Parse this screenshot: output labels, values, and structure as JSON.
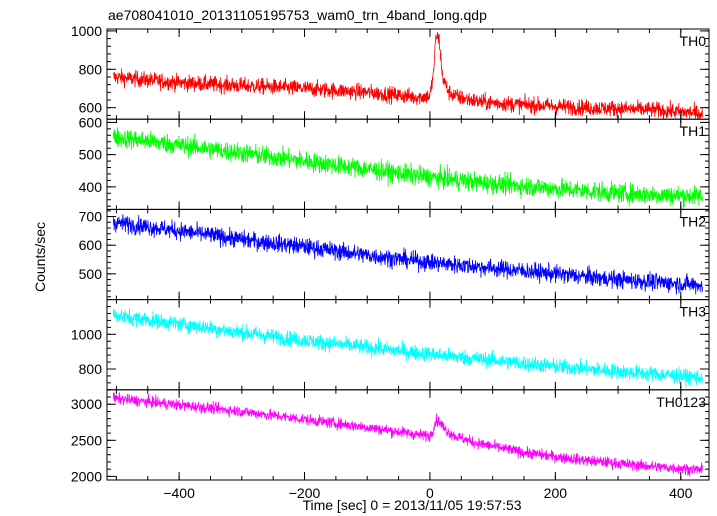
{
  "chart_data": {
    "type": "line",
    "title": "ae708041010_20131105195753_wam0_trn_4band_long.qdp",
    "xlabel": "Time [sec] 0 = 2013/11/05 19:57:53",
    "ylabel": "Counts/sec",
    "xlim": [
      -515,
      445
    ],
    "x_ticks": [
      -400,
      -200,
      0,
      200,
      400
    ],
    "x_tick_labels": [
      "−400",
      "−200",
      "0",
      "200",
      "400"
    ],
    "grid": false,
    "panels": [
      {
        "name": "TH0",
        "color": "#ff0000",
        "ylim": [
          540,
          1010
        ],
        "y_ticks": [
          600,
          800,
          1000
        ],
        "y_tick_labels": [
          "600",
          "800",
          "1000"
        ],
        "x": [
          -505,
          -400,
          -300,
          -200,
          -100,
          -20,
          0,
          5,
          10,
          15,
          20,
          30,
          45,
          80,
          150,
          250,
          350,
          435
        ],
        "values": [
          760,
          730,
          715,
          700,
          680,
          655,
          660,
          760,
          980,
          950,
          760,
          680,
          655,
          630,
          615,
          600,
          590,
          570
        ],
        "noise": 30
      },
      {
        "name": "TH1",
        "color": "#00ff00",
        "ylim": [
          330,
          610
        ],
        "y_ticks": [
          400,
          500,
          600
        ],
        "y_tick_labels": [
          "400",
          "500",
          "600"
        ],
        "x": [
          -505,
          -400,
          -300,
          -200,
          -100,
          0,
          100,
          200,
          300,
          435
        ],
        "values": [
          555,
          530,
          505,
          480,
          455,
          430,
          410,
          395,
          380,
          370
        ],
        "noise": 22
      },
      {
        "name": "TH2",
        "color": "#0000ff",
        "ylim": [
          410,
          725
        ],
        "y_ticks": [
          500,
          600,
          700
        ],
        "y_tick_labels": [
          "500",
          "600",
          "700"
        ],
        "x": [
          -505,
          -400,
          -300,
          -200,
          -100,
          0,
          100,
          200,
          300,
          435
        ],
        "values": [
          680,
          650,
          620,
          595,
          565,
          540,
          520,
          500,
          480,
          460
        ],
        "noise": 22
      },
      {
        "name": "TH3",
        "color": "#00ffff",
        "ylim": [
          680,
          1200
        ],
        "y_ticks": [
          800,
          1000
        ],
        "y_tick_labels": [
          "800",
          "1000"
        ],
        "x": [
          -505,
          -400,
          -300,
          -200,
          -100,
          0,
          100,
          200,
          300,
          435
        ],
        "values": [
          1110,
          1060,
          1010,
          965,
          925,
          885,
          850,
          815,
          785,
          750
        ],
        "noise": 32
      },
      {
        "name": "TH0123",
        "color": "#ff00ff",
        "ylim": [
          1950,
          3200
        ],
        "y_ticks": [
          2000,
          2500,
          3000
        ],
        "y_tick_labels": [
          "2000",
          "2500",
          "3000"
        ],
        "x": [
          -505,
          -400,
          -300,
          -200,
          -100,
          -20,
          0,
          5,
          10,
          15,
          25,
          40,
          70,
          150,
          250,
          350,
          435
        ],
        "values": [
          3080,
          2990,
          2900,
          2790,
          2680,
          2580,
          2560,
          2650,
          2780,
          2760,
          2640,
          2560,
          2470,
          2330,
          2220,
          2140,
          2090
        ],
        "noise": 55
      }
    ]
  }
}
